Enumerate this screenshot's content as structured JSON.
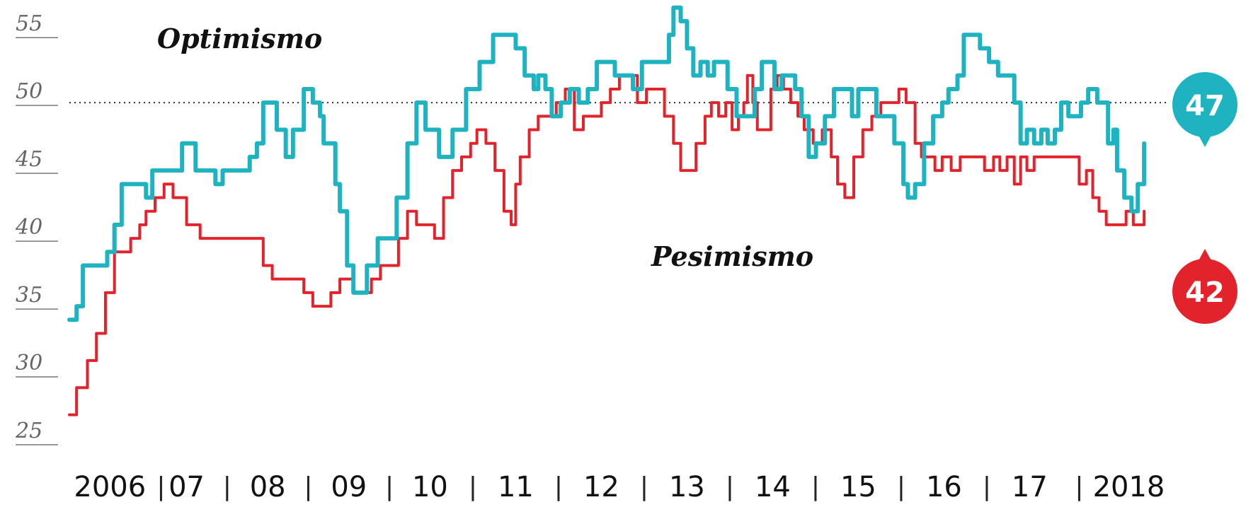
{
  "chart_data": {
    "type": "line",
    "xlim": [
      2006.0,
      2018.5
    ],
    "ylim": [
      25,
      56
    ],
    "yticks": [
      "55",
      "50",
      "45",
      "40",
      "35",
      "30",
      "25"
    ],
    "ytick_values": [
      55,
      50,
      45,
      40,
      35,
      30,
      25
    ],
    "xticks": [
      {
        "label": "2006",
        "x": 2006.45
      },
      {
        "label": "07",
        "x": 2007.3
      },
      {
        "label": "08",
        "x": 2008.2
      },
      {
        "label": "09",
        "x": 2009.1
      },
      {
        "label": "10",
        "x": 2010.0
      },
      {
        "label": "11",
        "x": 2010.95
      },
      {
        "label": "12",
        "x": 2011.9
      },
      {
        "label": "13",
        "x": 2012.85
      },
      {
        "label": "14",
        "x": 2013.8
      },
      {
        "label": "15",
        "x": 2014.75
      },
      {
        "label": "16",
        "x": 2015.7
      },
      {
        "label": "17",
        "x": 2016.65
      },
      {
        "label": "2018",
        "x": 2017.75
      }
    ],
    "separator": "|",
    "reference_line": {
      "y": 50,
      "style": "dotted"
    },
    "series": [
      {
        "name": "Optimismo",
        "color": "#1fb3c1",
        "points": [
          [
            2006.0,
            34
          ],
          [
            2006.08,
            35
          ],
          [
            2006.15,
            38
          ],
          [
            2006.3,
            38
          ],
          [
            2006.42,
            39
          ],
          [
            2006.5,
            41
          ],
          [
            2006.58,
            44
          ],
          [
            2006.75,
            44
          ],
          [
            2006.85,
            43
          ],
          [
            2006.92,
            45
          ],
          [
            2007.08,
            45
          ],
          [
            2007.25,
            47
          ],
          [
            2007.4,
            45
          ],
          [
            2007.55,
            45
          ],
          [
            2007.62,
            44
          ],
          [
            2007.7,
            45
          ],
          [
            2007.9,
            45
          ],
          [
            2008.0,
            46
          ],
          [
            2008.08,
            47
          ],
          [
            2008.15,
            50
          ],
          [
            2008.23,
            50
          ],
          [
            2008.3,
            48
          ],
          [
            2008.4,
            46
          ],
          [
            2008.48,
            48
          ],
          [
            2008.6,
            51
          ],
          [
            2008.7,
            50
          ],
          [
            2008.78,
            49
          ],
          [
            2008.82,
            47
          ],
          [
            2008.9,
            47
          ],
          [
            2008.95,
            44
          ],
          [
            2009.0,
            42
          ],
          [
            2009.08,
            38
          ],
          [
            2009.15,
            36
          ],
          [
            2009.22,
            36
          ],
          [
            2009.3,
            38
          ],
          [
            2009.42,
            40
          ],
          [
            2009.55,
            40
          ],
          [
            2009.63,
            43
          ],
          [
            2009.75,
            47
          ],
          [
            2009.85,
            50
          ],
          [
            2009.95,
            48
          ],
          [
            2010.1,
            46
          ],
          [
            2010.25,
            48
          ],
          [
            2010.4,
            51
          ],
          [
            2010.55,
            53
          ],
          [
            2010.7,
            55
          ],
          [
            2010.85,
            55
          ],
          [
            2010.95,
            54
          ],
          [
            2011.05,
            52
          ],
          [
            2011.15,
            51
          ],
          [
            2011.2,
            52
          ],
          [
            2011.28,
            51
          ],
          [
            2011.35,
            49
          ],
          [
            2011.45,
            50
          ],
          [
            2011.55,
            51
          ],
          [
            2011.65,
            50
          ],
          [
            2011.75,
            51
          ],
          [
            2011.85,
            53
          ],
          [
            2011.98,
            53
          ],
          [
            2012.05,
            52
          ],
          [
            2012.15,
            52
          ],
          [
            2012.25,
            51
          ],
          [
            2012.35,
            53
          ],
          [
            2012.45,
            53
          ],
          [
            2012.55,
            53
          ],
          [
            2012.65,
            55
          ],
          [
            2012.7,
            57
          ],
          [
            2012.78,
            56
          ],
          [
            2012.85,
            54
          ],
          [
            2012.92,
            52
          ],
          [
            2013.0,
            53
          ],
          [
            2013.08,
            52
          ],
          [
            2013.15,
            53
          ],
          [
            2013.23,
            53
          ],
          [
            2013.3,
            51
          ],
          [
            2013.4,
            49
          ],
          [
            2013.5,
            49
          ],
          [
            2013.6,
            51
          ],
          [
            2013.68,
            53
          ],
          [
            2013.75,
            53
          ],
          [
            2013.82,
            51
          ],
          [
            2013.9,
            52
          ],
          [
            2013.98,
            52
          ],
          [
            2014.05,
            51
          ],
          [
            2014.12,
            49
          ],
          [
            2014.2,
            46
          ],
          [
            2014.28,
            47
          ],
          [
            2014.38,
            49
          ],
          [
            2014.48,
            51
          ],
          [
            2014.58,
            51
          ],
          [
            2014.68,
            49
          ],
          [
            2014.75,
            51
          ],
          [
            2014.85,
            51
          ],
          [
            2014.95,
            49
          ],
          [
            2015.05,
            49
          ],
          [
            2015.15,
            47
          ],
          [
            2015.25,
            44
          ],
          [
            2015.3,
            43
          ],
          [
            2015.38,
            44
          ],
          [
            2015.48,
            47
          ],
          [
            2015.58,
            49
          ],
          [
            2015.68,
            50
          ],
          [
            2015.75,
            51
          ],
          [
            2015.85,
            52
          ],
          [
            2015.92,
            55
          ],
          [
            2016.0,
            55
          ],
          [
            2016.1,
            54
          ],
          [
            2016.2,
            53
          ],
          [
            2016.3,
            52
          ],
          [
            2016.4,
            52
          ],
          [
            2016.48,
            50
          ],
          [
            2016.55,
            47
          ],
          [
            2016.62,
            48
          ],
          [
            2016.7,
            47
          ],
          [
            2016.78,
            48
          ],
          [
            2016.85,
            47
          ],
          [
            2016.93,
            48
          ],
          [
            2017.0,
            50
          ],
          [
            2017.08,
            49
          ],
          [
            2017.15,
            49
          ],
          [
            2017.22,
            50
          ],
          [
            2017.3,
            51
          ],
          [
            2017.4,
            50
          ],
          [
            2017.48,
            50
          ],
          [
            2017.52,
            47
          ],
          [
            2017.58,
            48
          ],
          [
            2017.62,
            45
          ],
          [
            2017.7,
            43
          ],
          [
            2017.78,
            42
          ],
          [
            2017.85,
            44
          ],
          [
            2017.92,
            47
          ]
        ],
        "last_value": 47,
        "label": "Optimismo"
      },
      {
        "name": "Pesimismo",
        "color": "#e2232b",
        "points": [
          [
            2006.0,
            27
          ],
          [
            2006.08,
            29
          ],
          [
            2006.2,
            31
          ],
          [
            2006.3,
            33
          ],
          [
            2006.4,
            36
          ],
          [
            2006.5,
            39
          ],
          [
            2006.58,
            39
          ],
          [
            2006.68,
            40
          ],
          [
            2006.78,
            41
          ],
          [
            2006.85,
            42
          ],
          [
            2006.95,
            43
          ],
          [
            2007.05,
            44
          ],
          [
            2007.15,
            43
          ],
          [
            2007.3,
            41
          ],
          [
            2007.45,
            40
          ],
          [
            2007.6,
            40
          ],
          [
            2007.75,
            40
          ],
          [
            2007.9,
            40
          ],
          [
            2008.0,
            40
          ],
          [
            2008.08,
            40
          ],
          [
            2008.15,
            38
          ],
          [
            2008.25,
            37
          ],
          [
            2008.4,
            37
          ],
          [
            2008.52,
            37
          ],
          [
            2008.6,
            36
          ],
          [
            2008.7,
            35
          ],
          [
            2008.8,
            35
          ],
          [
            2008.9,
            36
          ],
          [
            2009.0,
            37
          ],
          [
            2009.08,
            37
          ],
          [
            2009.15,
            36
          ],
          [
            2009.25,
            36
          ],
          [
            2009.35,
            37
          ],
          [
            2009.45,
            38
          ],
          [
            2009.55,
            38
          ],
          [
            2009.65,
            40
          ],
          [
            2009.75,
            42
          ],
          [
            2009.85,
            41
          ],
          [
            2009.95,
            41
          ],
          [
            2010.05,
            40
          ],
          [
            2010.15,
            43
          ],
          [
            2010.25,
            45
          ],
          [
            2010.35,
            46
          ],
          [
            2010.45,
            47
          ],
          [
            2010.52,
            48
          ],
          [
            2010.62,
            47
          ],
          [
            2010.72,
            45
          ],
          [
            2010.82,
            42
          ],
          [
            2010.9,
            41
          ],
          [
            2010.95,
            44
          ],
          [
            2011.0,
            46
          ],
          [
            2011.1,
            48
          ],
          [
            2011.2,
            49
          ],
          [
            2011.3,
            49
          ],
          [
            2011.4,
            50
          ],
          [
            2011.5,
            51
          ],
          [
            2011.6,
            48
          ],
          [
            2011.7,
            49
          ],
          [
            2011.8,
            49
          ],
          [
            2011.9,
            50
          ],
          [
            2012.0,
            51
          ],
          [
            2012.1,
            52
          ],
          [
            2012.2,
            52
          ],
          [
            2012.3,
            50
          ],
          [
            2012.4,
            51
          ],
          [
            2012.5,
            51
          ],
          [
            2012.6,
            49
          ],
          [
            2012.7,
            47
          ],
          [
            2012.78,
            45
          ],
          [
            2012.88,
            45
          ],
          [
            2012.95,
            47
          ],
          [
            2013.05,
            49
          ],
          [
            2013.12,
            50
          ],
          [
            2013.2,
            49
          ],
          [
            2013.28,
            50
          ],
          [
            2013.35,
            48
          ],
          [
            2013.42,
            49
          ],
          [
            2013.48,
            50
          ],
          [
            2013.52,
            52
          ],
          [
            2013.58,
            50
          ],
          [
            2013.63,
            48
          ],
          [
            2013.7,
            48
          ],
          [
            2013.78,
            51
          ],
          [
            2013.85,
            52
          ],
          [
            2013.92,
            51
          ],
          [
            2014.0,
            50
          ],
          [
            2014.08,
            49
          ],
          [
            2014.15,
            48
          ],
          [
            2014.25,
            47
          ],
          [
            2014.35,
            48
          ],
          [
            2014.45,
            46
          ],
          [
            2014.52,
            44
          ],
          [
            2014.6,
            43
          ],
          [
            2014.7,
            46
          ],
          [
            2014.8,
            48
          ],
          [
            2014.9,
            49
          ],
          [
            2015.0,
            50
          ],
          [
            2015.1,
            50
          ],
          [
            2015.2,
            51
          ],
          [
            2015.28,
            50
          ],
          [
            2015.38,
            47
          ],
          [
            2015.45,
            46
          ],
          [
            2015.52,
            46
          ],
          [
            2015.6,
            45
          ],
          [
            2015.68,
            46
          ],
          [
            2015.78,
            45
          ],
          [
            2015.88,
            46
          ],
          [
            2015.95,
            46
          ],
          [
            2016.05,
            46
          ],
          [
            2016.15,
            45
          ],
          [
            2016.25,
            46
          ],
          [
            2016.32,
            45
          ],
          [
            2016.4,
            46
          ],
          [
            2016.48,
            44
          ],
          [
            2016.55,
            46
          ],
          [
            2016.62,
            45
          ],
          [
            2016.7,
            46
          ],
          [
            2016.78,
            46
          ],
          [
            2016.88,
            46
          ],
          [
            2016.95,
            46
          ],
          [
            2017.05,
            46
          ],
          [
            2017.12,
            46
          ],
          [
            2017.2,
            44
          ],
          [
            2017.28,
            45
          ],
          [
            2017.35,
            43
          ],
          [
            2017.42,
            42
          ],
          [
            2017.5,
            41
          ],
          [
            2017.58,
            41
          ],
          [
            2017.65,
            41
          ],
          [
            2017.72,
            42
          ],
          [
            2017.8,
            41
          ],
          [
            2017.88,
            41
          ],
          [
            2017.92,
            42
          ]
        ],
        "last_value": 42,
        "label": "Pesimismo"
      }
    ]
  },
  "bubbles": {
    "optimismo": "47",
    "pesimismo": "42"
  }
}
